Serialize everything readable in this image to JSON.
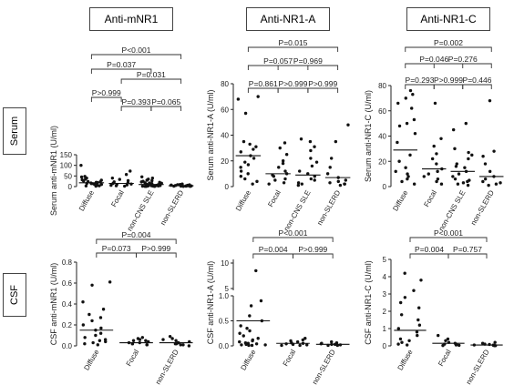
{
  "headers": [
    "Anti-mNR1",
    "Anti-NR1-A",
    "Anti-NR1-C"
  ],
  "row_labels": [
    "Serum",
    "CSF"
  ],
  "chart_data": [
    {
      "type": "scatter",
      "ylabel": "Serum anti-mNR1 (U/ml)",
      "yticks": [
        "0",
        "50",
        "100",
        "150"
      ],
      "ylim": [
        0,
        150
      ],
      "categories": [
        "Diffuse",
        "Focal",
        "non-CNS SLE",
        "non-SLERD"
      ],
      "medians": [
        18,
        15,
        10,
        4
      ],
      "points": [
        [
          100,
          48,
          45,
          40,
          35,
          32,
          30,
          26,
          24,
          22,
          20,
          19,
          17,
          15,
          14,
          12,
          10,
          8,
          6,
          4,
          3,
          2
        ],
        [
          73,
          57,
          40,
          34,
          28,
          22,
          18,
          15,
          12,
          10,
          8,
          6,
          4,
          2
        ],
        [
          46,
          40,
          35,
          30,
          28,
          25,
          22,
          20,
          18,
          17,
          16,
          15,
          14,
          13,
          12,
          11,
          10,
          9,
          9,
          8,
          7,
          6,
          6,
          5,
          5,
          4,
          4,
          3,
          3,
          2,
          2,
          2,
          1,
          1,
          1
        ],
        [
          12,
          10,
          9,
          8,
          7,
          6,
          6,
          5,
          5,
          4,
          4,
          3,
          3,
          2,
          2,
          2,
          1,
          1
        ]
      ],
      "comparisons": [
        {
          "p": "P<0.001",
          "from": 0,
          "to": 3
        },
        {
          "p": "P=0.037",
          "from": 0,
          "to": 2
        },
        {
          "p": "P=0.031",
          "from": 1,
          "to": 3
        },
        {
          "p": "P>0.999",
          "from": 0,
          "to": 1
        },
        {
          "p": "P=0.393",
          "from": 1,
          "to": 2
        },
        {
          "p": "P=0.065",
          "from": 2,
          "to": 3
        }
      ]
    },
    {
      "type": "scatter",
      "ylabel": "Serum anti-NR1-A (U/ml)",
      "yticks": [
        "0",
        "20",
        "40",
        "60",
        "80"
      ],
      "ylim": [
        0,
        80
      ],
      "categories": [
        "Diffuse",
        "Focal",
        "non-CNS SLE",
        "non-SLERD"
      ],
      "medians": [
        24,
        10,
        9,
        7
      ],
      "points": [
        [
          70,
          68,
          57,
          35,
          33,
          31,
          29,
          27,
          24,
          22,
          19,
          17,
          15,
          12,
          10,
          8,
          6,
          4,
          2
        ],
        [
          34,
          30,
          25,
          20,
          18,
          15,
          12,
          10,
          9,
          8,
          6,
          5,
          3,
          2
        ],
        [
          37,
          35,
          31,
          28,
          22,
          19,
          16,
          12,
          10,
          8,
          6,
          5,
          3,
          2,
          1
        ],
        [
          48,
          35,
          22,
          15,
          10,
          7,
          5,
          4,
          3,
          2,
          2,
          1
        ]
      ],
      "comparisons": [
        {
          "p": "P=0.015",
          "from": 0,
          "to": 3
        },
        {
          "p": "P=0.057",
          "from": 0,
          "to": 2
        },
        {
          "p": "P=0.969",
          "from": 1,
          "to": 3
        },
        {
          "p": "P=0.861",
          "from": 0,
          "to": 1
        },
        {
          "p": "P>0.999",
          "from": 1,
          "to": 2
        },
        {
          "p": "P>0.999",
          "from": 2,
          "to": 3
        }
      ]
    },
    {
      "type": "scatter",
      "ylabel": "Serum anti-NR1-C (U/ml)",
      "yticks": [
        "0",
        "20",
        "40",
        "60",
        "80"
      ],
      "ylim": [
        0,
        80
      ],
      "categories": [
        "Diffuse",
        "Focal",
        "non-CNS SLE",
        "non-SLERD"
      ],
      "medians": [
        29,
        14,
        12,
        8
      ],
      "points": [
        [
          76,
          73,
          70,
          66,
          62,
          53,
          50,
          48,
          42,
          35,
          25,
          20,
          15,
          12,
          10,
          8,
          6,
          4,
          2
        ],
        [
          66,
          38,
          32,
          26,
          22,
          18,
          14,
          12,
          10,
          8,
          6,
          4,
          2
        ],
        [
          50,
          45,
          30,
          27,
          25,
          22,
          18,
          16,
          15,
          12,
          10,
          8,
          6,
          5,
          4,
          3,
          2,
          1
        ],
        [
          68,
          28,
          24,
          18,
          12,
          8,
          6,
          4,
          3,
          2,
          1
        ]
      ],
      "comparisons": [
        {
          "p": "P=0.002",
          "from": 0,
          "to": 3
        },
        {
          "p": "P=0.046",
          "from": 0,
          "to": 2
        },
        {
          "p": "P=0.276",
          "from": 1,
          "to": 3
        },
        {
          "p": "P=0.293",
          "from": 0,
          "to": 1
        },
        {
          "p": "P>0.999",
          "from": 1,
          "to": 2
        },
        {
          "p": "P=0.446",
          "from": 2,
          "to": 3
        }
      ]
    },
    {
      "type": "scatter",
      "ylabel": "CSF anti-mNR1 (U/ml)",
      "yticks": [
        "0.0",
        "0.2",
        "0.4",
        "0.6",
        "0.8"
      ],
      "ylim": [
        0,
        0.8
      ],
      "categories": [
        "Diffuse",
        "Focal",
        "non-SLERD"
      ],
      "medians": [
        0.15,
        0.03,
        0.03
      ],
      "points": [
        [
          0.61,
          0.58,
          0.42,
          0.35,
          0.3,
          0.27,
          0.24,
          0.2,
          0.17,
          0.15,
          0.12,
          0.1,
          0.08,
          0.06,
          0.05,
          0.04,
          0.03,
          0.02,
          0.01
        ],
        [
          0.08,
          0.07,
          0.06,
          0.05,
          0.05,
          0.04,
          0.03,
          0.03,
          0.02,
          0.02,
          0.01,
          0.01
        ],
        [
          0.09,
          0.07,
          0.06,
          0.05,
          0.04,
          0.03,
          0.03,
          0.02,
          0.02,
          0.01,
          0.01,
          0.0
        ]
      ],
      "comparisons": [
        {
          "p": "P=0.004",
          "from": 0,
          "to": 2
        },
        {
          "p": "P=0.073",
          "from": 0,
          "to": 1
        },
        {
          "p": "P>0.999",
          "from": 1,
          "to": 2
        }
      ]
    },
    {
      "type": "scatter",
      "ylabel": "CSF anti-NR1-A (U/ml)",
      "yticks": [
        "0.0",
        "0.5",
        "1.0",
        "5",
        "10"
      ],
      "ylim": [
        0,
        10
      ],
      "axis_break": "between 1.0 and 5",
      "categories": [
        "Diffuse",
        "Focal",
        "non-SLERD"
      ],
      "medians": [
        0.5,
        0.05,
        0.03
      ],
      "points": [
        [
          8.5,
          0.9,
          0.8,
          0.6,
          0.5,
          0.4,
          0.35,
          0.3,
          0.25,
          0.2,
          0.15,
          0.12,
          0.1,
          0.08,
          0.06,
          0.05,
          0.04,
          0.03,
          0.02,
          0.02,
          0.01,
          0.01
        ],
        [
          0.15,
          0.12,
          0.1,
          0.08,
          0.06,
          0.05,
          0.04,
          0.03,
          0.02,
          0.01,
          0.01
        ],
        [
          0.08,
          0.06,
          0.05,
          0.04,
          0.03,
          0.03,
          0.02,
          0.01,
          0.01
        ]
      ],
      "comparisons": [
        {
          "p": "P<0.001",
          "from": 0,
          "to": 2
        },
        {
          "p": "P=0.004",
          "from": 0,
          "to": 1
        },
        {
          "p": "P>0.999",
          "from": 1,
          "to": 2
        }
      ]
    },
    {
      "type": "scatter",
      "ylabel": "CSF anti-NR1-C (U/ml)",
      "yticks": [
        "0",
        "1",
        "2",
        "3",
        "4",
        "5"
      ],
      "ylim": [
        0,
        5
      ],
      "categories": [
        "Diffuse",
        "Focal",
        "non-SLERD"
      ],
      "medians": [
        0.9,
        0.15,
        0.05
      ],
      "points": [
        [
          4.2,
          3.8,
          3.2,
          2.8,
          2.5,
          2.2,
          1.8,
          1.5,
          1.2,
          1.0,
          0.8,
          0.6,
          0.4,
          0.3,
          0.2,
          0.1,
          0.05
        ],
        [
          0.6,
          0.4,
          0.3,
          0.2,
          0.15,
          0.1,
          0.08,
          0.05,
          0.03,
          0.02
        ],
        [
          0.2,
          0.15,
          0.1,
          0.08,
          0.05,
          0.04,
          0.03,
          0.02,
          0.01,
          0.01
        ]
      ],
      "comparisons": [
        {
          "p": "P<0.001",
          "from": 0,
          "to": 2
        },
        {
          "p": "P=0.004",
          "from": 0,
          "to": 1
        },
        {
          "p": "P=0.757",
          "from": 1,
          "to": 2
        }
      ]
    }
  ]
}
